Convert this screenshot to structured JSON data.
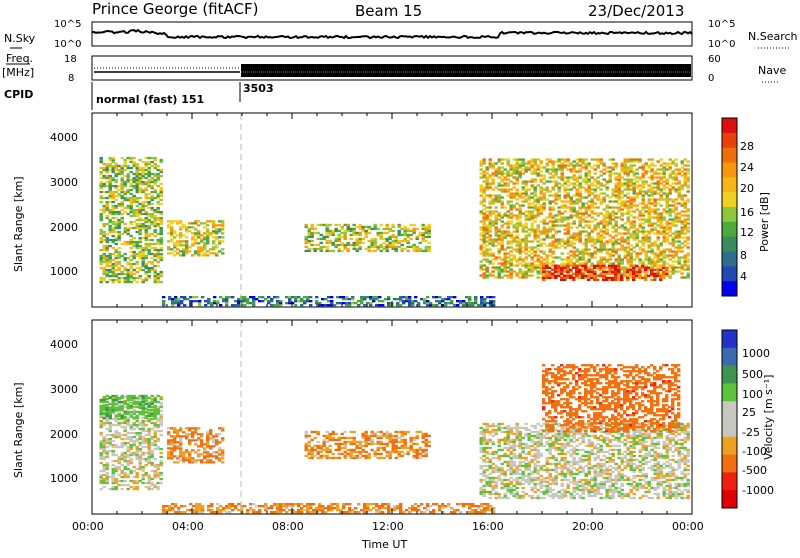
{
  "header": {
    "station": "Prince George (fitACF)",
    "beam": "Beam 15",
    "date": "23/Dec/2013"
  },
  "aux": {
    "nsky_label": "N.Sky",
    "nsky_ticks": [
      "10^5",
      "10^0"
    ],
    "nsearch_label": "N.Search",
    "freq_label_line1": "Freq.",
    "freq_label_line2": "[MHz]",
    "freq_ticks": [
      "18",
      "8"
    ],
    "nave_ticks": [
      "60",
      "0"
    ],
    "nave_label": "Nave",
    "cpid_label": "CPID",
    "cpid_segments": [
      {
        "label": "normal (fast) 151",
        "start_hour": 0,
        "end_hour": 6
      },
      {
        "label": "3503",
        "start_hour": 6,
        "end_hour": 24
      }
    ]
  },
  "axes": {
    "ylabel": "Slant Range [km]",
    "xlabel": "Time UT",
    "y_ticks": [
      "4000",
      "3000",
      "2000",
      "1000"
    ],
    "x_ticks": [
      "00:00",
      "04:00",
      "08:00",
      "12:00",
      "16:00",
      "20:00",
      "00:00"
    ]
  },
  "colorbars": {
    "power": {
      "title": "Power [dB]",
      "labels": [
        "28",
        "24",
        "20",
        "16",
        "12",
        "8",
        "4"
      ],
      "colors": [
        "#0000ee",
        "#2246b4",
        "#2e6e8c",
        "#3a8c5e",
        "#4caa3c",
        "#8cc63a",
        "#f0d020",
        "#f8b418",
        "#f89610",
        "#f06c0c",
        "#e84008",
        "#dd1010"
      ]
    },
    "velocity": {
      "title": "Velocity [m s⁻¹]",
      "labels": [
        "1000",
        "500",
        "100",
        "25",
        "-25",
        "-100",
        "-500",
        "-1000"
      ],
      "colors": [
        "#2233cc",
        "#3a6ab0",
        "#3f9550",
        "#5cc23a",
        "#c8c8c0",
        "#c8c8c0",
        "#f0a020",
        "#f07010",
        "#ee2010",
        "#e00000"
      ]
    }
  },
  "chart_data": [
    {
      "type": "heatmap",
      "name": "power",
      "x_range": [
        0,
        24
      ],
      "y_range": [
        180,
        4500
      ],
      "x_unit": "hours UT",
      "y_unit": "km",
      "ylabel": "Slant Range [km]",
      "colorbar": "Power [dB]",
      "clim": [
        0,
        30
      ],
      "regions": [
        {
          "x": [
            0.3,
            2.8
          ],
          "y": [
            700,
            3500
          ],
          "value": 14
        },
        {
          "x": [
            3.0,
            5.2
          ],
          "y": [
            1300,
            2100
          ],
          "value": 16
        },
        {
          "x": [
            8.5,
            13.5
          ],
          "y": [
            1400,
            2000
          ],
          "value": 15
        },
        {
          "x": [
            15.5,
            23.8
          ],
          "y": [
            800,
            3500
          ],
          "value": 18
        },
        {
          "x": [
            18.0,
            23.0
          ],
          "y": [
            750,
            1100
          ],
          "value": 28
        },
        {
          "x": [
            2.8,
            16.0
          ],
          "y": [
            180,
            400
          ],
          "value": 6
        }
      ]
    },
    {
      "type": "heatmap",
      "name": "velocity",
      "x_range": [
        0,
        24
      ],
      "y_range": [
        180,
        4500
      ],
      "x_unit": "hours UT",
      "y_unit": "km",
      "ylabel": "Slant Range [km]",
      "xlabel": "Time UT",
      "colorbar": "Velocity [m s⁻¹]",
      "clim": [
        -1000,
        1000
      ],
      "regions": [
        {
          "x": [
            0.3,
            2.8
          ],
          "y": [
            700,
            2800
          ],
          "value": 0
        },
        {
          "x": [
            0.3,
            2.6
          ],
          "y": [
            2300,
            2800
          ],
          "value": 150
        },
        {
          "x": [
            3.0,
            5.2
          ],
          "y": [
            1300,
            2100
          ],
          "value": -150
        },
        {
          "x": [
            8.5,
            13.5
          ],
          "y": [
            1400,
            2000
          ],
          "value": -150
        },
        {
          "x": [
            15.5,
            23.8
          ],
          "y": [
            500,
            2200
          ],
          "value": 0
        },
        {
          "x": [
            18.0,
            23.5
          ],
          "y": [
            2000,
            3500
          ],
          "value": -300
        },
        {
          "x": [
            2.8,
            16.0
          ],
          "y": [
            180,
            400
          ],
          "value": -150
        }
      ]
    }
  ]
}
